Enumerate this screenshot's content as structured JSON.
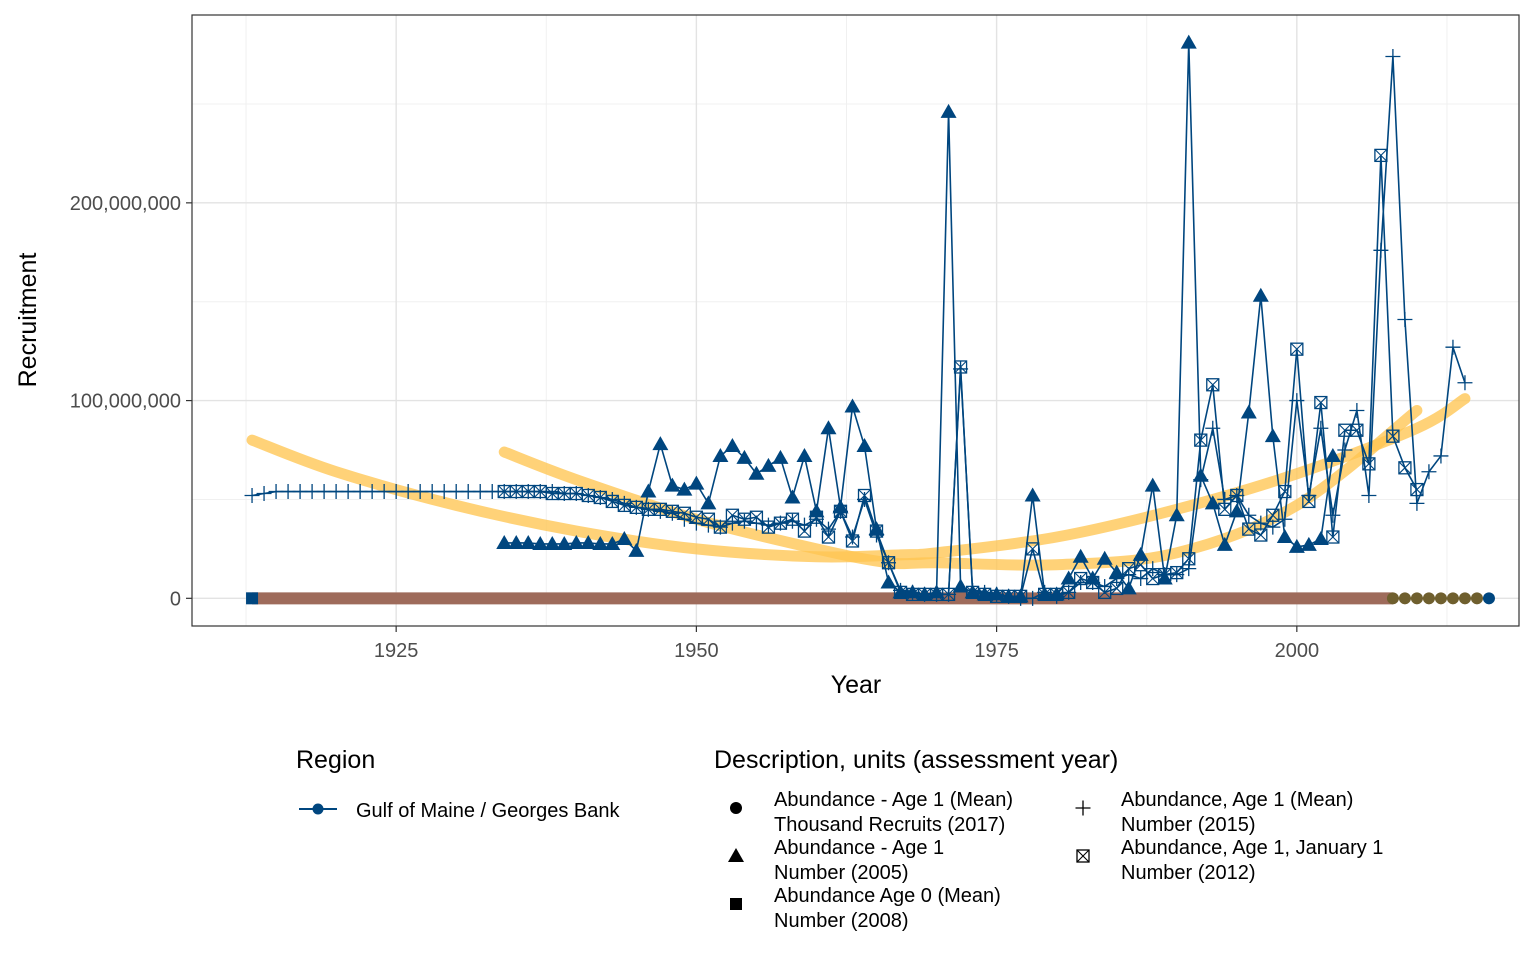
{
  "chart_data": {
    "type": "line",
    "xlabel": "Year",
    "ylabel": "Recruitment",
    "xlim": [
      1908,
      2018.5
    ],
    "ylim": [
      -14000000,
      295000000
    ],
    "x_ticks": [
      {
        "value": 1925,
        "label": "1925"
      },
      {
        "value": 1950,
        "label": "1950"
      },
      {
        "value": 1975,
        "label": "1975"
      },
      {
        "value": 2000,
        "label": "2000"
      }
    ],
    "y_ticks": [
      {
        "value": 0,
        "label": "0"
      },
      {
        "value": 100000000,
        "label": "100,000,000"
      },
      {
        "value": 200000000,
        "label": "200,000,000"
      }
    ],
    "grid": true,
    "colors": {
      "series": "#00467f",
      "smooth": "#ffc552",
      "flat_line": "#9e6b5b",
      "flat_points": "#6f5f2e"
    },
    "legend_region": {
      "title": "Region",
      "items": [
        {
          "label": "Gulf of Maine / Georges Bank",
          "color": "#00467f"
        }
      ]
    },
    "legend_description": {
      "title": "Description, units (assessment year)",
      "items": [
        {
          "shape": "circle",
          "lines": [
            "Abundance - Age 1 (Mean)",
            "Thousand Recruits (2017)"
          ]
        },
        {
          "shape": "triangle",
          "lines": [
            "Abundance - Age 1",
            "Number (2005)"
          ]
        },
        {
          "shape": "square",
          "lines": [
            "Abundance Age 0 (Mean)",
            "Number (2008)"
          ]
        },
        {
          "shape": "plus",
          "lines": [
            "Abundance, Age 1 (Mean)",
            "Number (2015)"
          ]
        },
        {
          "shape": "boxx",
          "lines": [
            "Abundance, Age 1, January 1",
            "Number (2012)"
          ]
        }
      ]
    },
    "series": [
      {
        "name": "Abundance - Age 1",
        "shape": "triangle",
        "x": [
          1934,
          1935,
          1936,
          1937,
          1938,
          1939,
          1940,
          1941,
          1942,
          1943,
          1944,
          1945,
          1946,
          1947,
          1948,
          1949,
          1950,
          1951,
          1952,
          1953,
          1954,
          1955,
          1956,
          1957,
          1958,
          1959,
          1960,
          1961,
          1962,
          1963,
          1964,
          1965,
          1966,
          1967,
          1968,
          1969,
          1970,
          1971,
          1972,
          1973,
          1974,
          1975,
          1976,
          1977,
          1978,
          1979,
          1980,
          1981,
          1982,
          1983,
          1984,
          1985,
          1986,
          1987,
          1988,
          1989,
          1990,
          1991,
          1992,
          1993,
          1994,
          1995,
          1996,
          1997,
          1998,
          1999,
          2000,
          2001,
          2002,
          2003
        ],
        "y": [
          28,
          28,
          28,
          27.5,
          27.5,
          27.5,
          28,
          28,
          27.5,
          27.5,
          30,
          24,
          54,
          78,
          57,
          55,
          58,
          48,
          72,
          77,
          71,
          63,
          67,
          71,
          51,
          72,
          44,
          86,
          46,
          97,
          77,
          35,
          8,
          3,
          3,
          2,
          3,
          246,
          6,
          3,
          2,
          2,
          1,
          1,
          52,
          2,
          2,
          10,
          21,
          10,
          20,
          13,
          5,
          22,
          57,
          10,
          42,
          281,
          62,
          48,
          27,
          44,
          94,
          153,
          82,
          31,
          26,
          27,
          30,
          72
        ]
      },
      {
        "name": "Abundance, Age 1 (Mean)",
        "shape": "plus",
        "x": [
          1913,
          1914,
          1915,
          1916,
          1917,
          1918,
          1919,
          1920,
          1921,
          1922,
          1923,
          1924,
          1925,
          1926,
          1927,
          1928,
          1929,
          1930,
          1931,
          1932,
          1933,
          1934,
          1935,
          1936,
          1937,
          1938,
          1939,
          1940,
          1941,
          1942,
          1943,
          1944,
          1945,
          1946,
          1947,
          1948,
          1949,
          1950,
          1951,
          1952,
          1953,
          1954,
          1955,
          1956,
          1957,
          1958,
          1959,
          1960,
          1961,
          1962,
          1963,
          1964,
          1965,
          1966,
          1967,
          1968,
          1969,
          1970,
          1971,
          1972,
          1973,
          1974,
          1975,
          1976,
          1977,
          1978,
          1979,
          1980,
          1981,
          1982,
          1983,
          1984,
          1985,
          1986,
          1987,
          1988,
          1989,
          1990,
          1991,
          1992,
          1993,
          1994,
          1995,
          1996,
          1997,
          1998,
          1999,
          2000,
          2001,
          2002,
          2003,
          2004,
          2005,
          2006,
          2007,
          2008,
          2009,
          2010,
          2011,
          2012,
          2013,
          2014
        ],
        "y": [
          52,
          53,
          54,
          54,
          54,
          54,
          54,
          54,
          54,
          54,
          54,
          54,
          54,
          54,
          54,
          54,
          54,
          54,
          54,
          54,
          54,
          54,
          54,
          54,
          54,
          54,
          53,
          53,
          52,
          51,
          50,
          48,
          46,
          45,
          44,
          43,
          40,
          38,
          37,
          36,
          38,
          39,
          38,
          37,
          38,
          39,
          37,
          40,
          35,
          44,
          31,
          50,
          32,
          18,
          4,
          3,
          2,
          2,
          2,
          116,
          4,
          3,
          2,
          1,
          0,
          0,
          3,
          1,
          3,
          8,
          8,
          6,
          10,
          12,
          10,
          15,
          12,
          12,
          15,
          60,
          86,
          50,
          52,
          42,
          38,
          36,
          40,
          100,
          52,
          86,
          42,
          75,
          95,
          52,
          176,
          274,
          141,
          48,
          64,
          72,
          127,
          109
        ]
      },
      {
        "name": "Abundance, Age 1, January 1",
        "shape": "boxx",
        "x": [
          1934,
          1935,
          1936,
          1937,
          1938,
          1939,
          1940,
          1941,
          1942,
          1943,
          1944,
          1945,
          1946,
          1947,
          1948,
          1949,
          1950,
          1951,
          1952,
          1953,
          1954,
          1955,
          1956,
          1957,
          1958,
          1959,
          1960,
          1961,
          1962,
          1963,
          1964,
          1965,
          1966,
          1967,
          1968,
          1969,
          1970,
          1971,
          1972,
          1973,
          1974,
          1975,
          1976,
          1977,
          1978,
          1979,
          1980,
          1981,
          1982,
          1983,
          1984,
          1985,
          1986,
          1987,
          1988,
          1989,
          1990,
          1991,
          1992,
          1993,
          1994,
          1995,
          1996,
          1997,
          1998,
          1999,
          2000,
          2001,
          2002,
          2003,
          2004,
          2005,
          2006,
          2007,
          2008,
          2009,
          2010
        ],
        "y": [
          54,
          54,
          54,
          54,
          53,
          53,
          53,
          52,
          51,
          49,
          47,
          46,
          45,
          45,
          44,
          43,
          41,
          40,
          36,
          42,
          40,
          41,
          36,
          38,
          40,
          34,
          41,
          31,
          44,
          29,
          52,
          34,
          18,
          3,
          2,
          2,
          2,
          2,
          117,
          3,
          2,
          1,
          1,
          1,
          25,
          2,
          2,
          3,
          10,
          8,
          3,
          5,
          15,
          17,
          10,
          12,
          13,
          20,
          80,
          108,
          45,
          52,
          35,
          32,
          42,
          54,
          126,
          49,
          99,
          31,
          85,
          85,
          68,
          224,
          82,
          66,
          55
        ]
      }
    ],
    "flat_series": [
      {
        "name": "Abundance Age 0 (Mean)",
        "shape": "square",
        "x_start": 1913,
        "x_end": 2008,
        "y": 0
      },
      {
        "name": "Abundance - Age 1 (Mean)",
        "shape": "circle",
        "x_start": 2008,
        "x_end": 2016,
        "y": 0
      }
    ],
    "smooth_lines": [
      {
        "x": [
          1913,
          1920,
          1930,
          1940,
          1950,
          1960,
          1967,
          1970,
          1980,
          1990,
          2000,
          2010,
          2014
        ],
        "y": [
          80,
          64,
          47,
          34,
          25,
          21,
          22,
          23,
          31,
          45,
          63,
          86,
          101
        ]
      },
      {
        "x": [
          1934,
          1940,
          1950,
          1960,
          1966,
          1970,
          1980,
          1990,
          2000,
          2010
        ],
        "y": [
          74,
          60,
          40,
          25,
          18,
          18,
          17,
          23,
          47,
          95
        ]
      }
    ]
  }
}
